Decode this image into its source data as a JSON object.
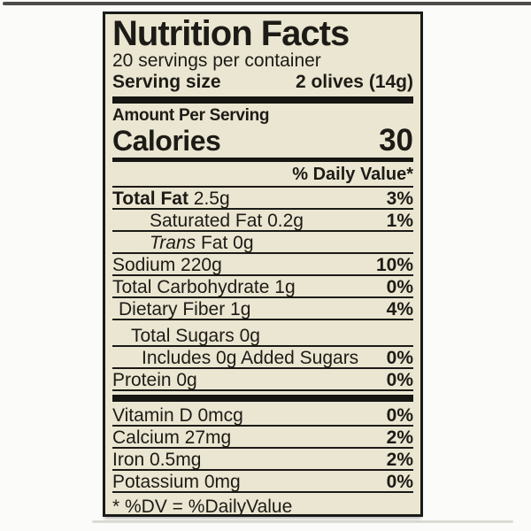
{
  "page": {
    "background": "#fbfbf9"
  },
  "artifacts": {
    "top_strip_color": "#4e4c4a",
    "label_shadow_color": "#dcdbd6"
  },
  "label": {
    "background": "#ebe6d1",
    "border_color": "#1a1a1a",
    "text_color": "#1d1b16",
    "title": "Nutrition Facts",
    "servings_per_container": "20 servings per container",
    "serving_size_label": "Serving size",
    "serving_size_value": "2 olives (14g)",
    "amount_per_serving": "Amount Per Serving",
    "calories_label": "Calories",
    "calories_value": "30",
    "daily_value_header": "% Daily Value*",
    "footnote": "* %DV = %DailyValue"
  },
  "nutrients": {
    "macro_rows": [
      {
        "parts": [
          {
            "text": "Total Fat",
            "bold": true
          },
          {
            "text": " 2.5g"
          }
        ],
        "pct": "3%",
        "indent": 0
      },
      {
        "parts": [
          {
            "text": "Saturated Fat 0.2g"
          }
        ],
        "pct": "1%",
        "indent": 42
      },
      {
        "parts": [
          {
            "text": "Trans",
            "italic": true
          },
          {
            "text": " Fat 0g"
          }
        ],
        "pct": "",
        "indent": 42
      },
      {
        "parts": [
          {
            "text": "Sodium 220g"
          }
        ],
        "pct": "10%",
        "indent": 0
      },
      {
        "parts": [
          {
            "text": "Total Carbohydrate 1g"
          }
        ],
        "pct": "0%",
        "indent": 0
      },
      {
        "parts": [
          {
            "text": "Dietary Fiber 1g"
          }
        ],
        "pct": "4%",
        "indent": 7
      },
      {
        "parts": [
          {
            "text": "Total Sugars 0g"
          }
        ],
        "pct": "",
        "indent": 21,
        "gap": true
      },
      {
        "parts": [
          {
            "text": "Includes 0g Added Sugars"
          }
        ],
        "pct": "0%",
        "indent": 33
      },
      {
        "parts": [
          {
            "text": "Protein 0g"
          }
        ],
        "pct": "0%",
        "indent": 0
      }
    ],
    "micro_rows": [
      {
        "parts": [
          {
            "text": "Vitamin D 0mcg"
          }
        ],
        "pct": "0%",
        "indent": 0
      },
      {
        "parts": [
          {
            "text": "Calcium 27mg"
          }
        ],
        "pct": "2%",
        "indent": 0
      },
      {
        "parts": [
          {
            "text": "Iron 0.5mg"
          }
        ],
        "pct": "2%",
        "indent": 0
      },
      {
        "parts": [
          {
            "text": "Potassium 0mg"
          }
        ],
        "pct": "0%",
        "indent": 0
      }
    ]
  }
}
